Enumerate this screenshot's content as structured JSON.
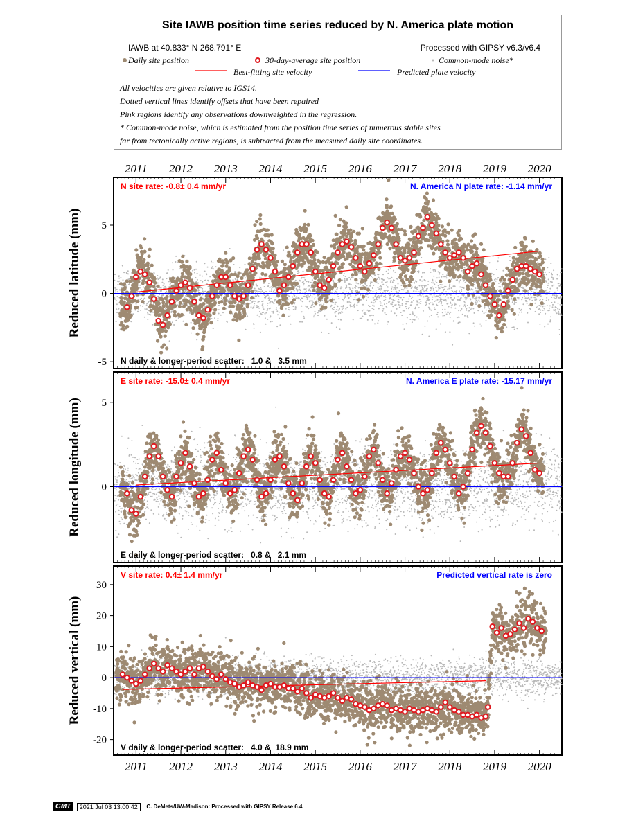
{
  "header": {
    "title": "Site IAWB position time series reduced by N. America plate motion",
    "site_location": "IAWB at 40.833° N 268.791° E",
    "processed_with": "Processed with GIPSY v6.3/v6.4",
    "legend": {
      "daily": "Daily site position",
      "avg30": "30-day-average site position",
      "cmn": "Common-mode noise*",
      "best_fit": "Best-fitting site velocity",
      "predicted": "Predicted plate velocity"
    },
    "notes": [
      "All velocities are given relative to IGS14.",
      "Dotted vertical lines identify offsets that have been repaired",
      "Pink regions identify any observations downweighted in the regression.",
      "* Common-mode noise, which is estimated from the position time series of numerous stable sites",
      "far from tectonically active regions, is subtracted from the measured daily site coordinates."
    ]
  },
  "colors": {
    "daily": "#9e8a72",
    "avg30_fill": "#ffffff",
    "avg30_edge": "#e0191f",
    "cmn": "#b8b8b8",
    "best_fit": "#ff0000",
    "predicted": "#0000ff",
    "site_rate_text": "#ff0000",
    "plate_rate_text": "#0000ff"
  },
  "chart_data": [
    {
      "type": "scatter",
      "component": "N",
      "ylabel": "Reduced latitude (mm)",
      "x_tick_labels": [
        "2011",
        "2012",
        "2013",
        "2014",
        "2015",
        "2016",
        "2017",
        "2018",
        "2019",
        "2020"
      ],
      "xlim": [
        2010.5,
        2020.5
      ],
      "ylim": [
        -5.5,
        8.5
      ],
      "yticks": [
        -5,
        0,
        5
      ],
      "site_rate_label": "N site rate:  -0.8± 0.4 mm/yr",
      "plate_rate_label": "N. America N plate rate: -1.14 mm/yr",
      "scatter_label": "N daily & longer-period scatter:   1.0 &   3.5 mm",
      "best_fit_line": {
        "x": [
          2011.0,
          2020.0
        ],
        "y": [
          0.1,
          3.1
        ]
      },
      "predicted_line": {
        "x": [
          2010.5,
          2020.5
        ],
        "y": [
          0,
          0
        ]
      },
      "avg30": {
        "x": [
          2010.8,
          2010.9,
          2011.0,
          2011.1,
          2011.2,
          2011.3,
          2011.4,
          2011.5,
          2011.6,
          2011.7,
          2011.8,
          2011.9,
          2012.0,
          2012.1,
          2012.2,
          2012.3,
          2012.4,
          2012.5,
          2012.6,
          2012.7,
          2012.8,
          2012.9,
          2013.0,
          2013.1,
          2013.2,
          2013.3,
          2013.4,
          2013.5,
          2013.6,
          2013.7,
          2013.8,
          2013.9,
          2014.0,
          2014.1,
          2014.2,
          2014.3,
          2014.4,
          2014.5,
          2014.6,
          2014.7,
          2014.8,
          2014.9,
          2015.0,
          2015.1,
          2015.2,
          2015.3,
          2015.4,
          2015.5,
          2015.6,
          2015.7,
          2015.8,
          2015.9,
          2016.0,
          2016.1,
          2016.2,
          2016.3,
          2016.4,
          2016.5,
          2016.6,
          2016.7,
          2016.8,
          2016.9,
          2017.0,
          2017.1,
          2017.2,
          2017.3,
          2017.4,
          2017.5,
          2017.6,
          2017.7,
          2017.8,
          2017.9,
          2018.0,
          2018.1,
          2018.2,
          2018.3,
          2018.4,
          2018.5,
          2018.6,
          2018.7,
          2018.8,
          2018.9,
          2019.0,
          2019.1,
          2019.2,
          2019.3,
          2019.4,
          2019.5,
          2019.6,
          2019.7,
          2019.8,
          2019.9,
          2020.0
        ],
        "y": [
          -1.0,
          -0.2,
          1.2,
          1.6,
          1.4,
          0.8,
          -0.4,
          -2.0,
          -2.3,
          -1.6,
          -0.6,
          0.2,
          0.6,
          0.8,
          0.4,
          -0.6,
          -1.6,
          -1.8,
          -1.2,
          -0.2,
          0.6,
          1.2,
          1.2,
          0.6,
          -0.2,
          -0.4,
          -0.2,
          0.6,
          1.8,
          3.2,
          3.6,
          3.2,
          2.6,
          1.6,
          0.2,
          0.6,
          1.2,
          2.0,
          3.0,
          3.6,
          3.6,
          3.0,
          1.6,
          0.6,
          0.4,
          1.0,
          2.0,
          3.0,
          3.6,
          3.8,
          3.4,
          2.6,
          2.0,
          1.6,
          2.2,
          2.8,
          3.6,
          4.8,
          5.2,
          4.8,
          3.6,
          2.6,
          2.4,
          2.6,
          3.0,
          4.2,
          4.8,
          5.6,
          5.0,
          4.4,
          3.6,
          3.0,
          2.6,
          2.8,
          3.0,
          2.6,
          1.6,
          2.0,
          2.2,
          1.4,
          0.6,
          -0.2,
          -0.8,
          -1.6,
          -0.8,
          0.2,
          1.0,
          1.8,
          2.0,
          2.0,
          1.8,
          1.6,
          1.4
        ]
      }
    },
    {
      "type": "scatter",
      "component": "E",
      "ylabel": "Reduced longitude (mm)",
      "x_tick_labels": [
        "2011",
        "2012",
        "2013",
        "2014",
        "2015",
        "2016",
        "2017",
        "2018",
        "2019",
        "2020"
      ],
      "xlim": [
        2010.5,
        2020.5
      ],
      "ylim": [
        -4.5,
        6.8
      ],
      "yticks": [
        0,
        5
      ],
      "site_rate_label": "E site rate:  -15.0± 0.4 mm/yr",
      "plate_rate_label": "N. America E plate rate: -15.17 mm/yr",
      "scatter_label": "E daily & longer-period scatter:   0.8 &   2.1 mm",
      "best_fit_line": {
        "x": [
          2011.0,
          2020.0
        ],
        "y": [
          0.1,
          1.4
        ]
      },
      "predicted_line": {
        "x": [
          2010.5,
          2020.5
        ],
        "y": [
          0,
          0
        ]
      },
      "avg30": {
        "x": [
          2010.8,
          2010.9,
          2011.0,
          2011.1,
          2011.2,
          2011.3,
          2011.4,
          2011.5,
          2011.6,
          2011.7,
          2011.8,
          2011.9,
          2012.0,
          2012.1,
          2012.2,
          2012.3,
          2012.4,
          2012.5,
          2012.6,
          2012.7,
          2012.8,
          2012.9,
          2013.0,
          2013.1,
          2013.2,
          2013.3,
          2013.4,
          2013.5,
          2013.6,
          2013.7,
          2013.8,
          2013.9,
          2014.0,
          2014.1,
          2014.2,
          2014.3,
          2014.4,
          2014.5,
          2014.6,
          2014.7,
          2014.8,
          2014.9,
          2015.0,
          2015.1,
          2015.2,
          2015.3,
          2015.4,
          2015.5,
          2015.6,
          2015.7,
          2015.8,
          2015.9,
          2016.0,
          2016.1,
          2016.2,
          2016.3,
          2016.4,
          2016.5,
          2016.6,
          2016.7,
          2016.8,
          2016.9,
          2017.0,
          2017.1,
          2017.2,
          2017.3,
          2017.4,
          2017.5,
          2017.6,
          2017.7,
          2017.8,
          2017.9,
          2018.0,
          2018.1,
          2018.2,
          2018.3,
          2018.4,
          2018.5,
          2018.6,
          2018.7,
          2018.8,
          2018.9,
          2019.0,
          2019.1,
          2019.2,
          2019.3,
          2019.4,
          2019.5,
          2019.6,
          2019.7,
          2019.8,
          2019.9,
          2020.0
        ],
        "y": [
          -0.4,
          -1.4,
          -1.6,
          -0.6,
          0.6,
          1.8,
          2.4,
          1.8,
          0.6,
          -0.2,
          -0.6,
          0.6,
          1.4,
          2.0,
          1.2,
          0.2,
          -0.6,
          -0.4,
          0.4,
          1.6,
          2.0,
          1.0,
          0.2,
          -0.4,
          -0.2,
          0.8,
          1.8,
          2.2,
          1.6,
          0.4,
          -0.6,
          -0.4,
          0.4,
          1.6,
          1.8,
          1.2,
          0.2,
          -0.4,
          -0.8,
          0.2,
          1.2,
          1.8,
          1.4,
          0.4,
          -0.4,
          -0.6,
          0.4,
          1.6,
          2.0,
          1.2,
          0.4,
          -0.4,
          -0.2,
          0.6,
          1.8,
          2.2,
          1.4,
          0.4,
          -0.4,
          0.2,
          1.0,
          1.8,
          2.0,
          1.6,
          0.8,
          0.0,
          -0.4,
          -0.2,
          0.8,
          2.0,
          2.6,
          2.2,
          1.4,
          0.6,
          -0.4,
          0.0,
          0.8,
          2.2,
          3.2,
          3.6,
          3.2,
          2.4,
          1.4,
          0.8,
          0.6,
          0.6,
          1.4,
          2.6,
          3.4,
          3.0,
          2.0,
          1.0,
          0.8
        ]
      }
    },
    {
      "type": "scatter",
      "component": "V",
      "ylabel": "Reduced vertical (mm)",
      "x_tick_labels": [
        "2011",
        "2012",
        "2013",
        "2014",
        "2015",
        "2016",
        "2017",
        "2018",
        "2019",
        "2020"
      ],
      "xlim": [
        2010.5,
        2020.5
      ],
      "ylim": [
        -25,
        36
      ],
      "yticks": [
        -20,
        -10,
        0,
        10,
        20,
        30
      ],
      "site_rate_label": "V site rate:   0.4± 1.4 mm/yr",
      "plate_rate_label": "Predicted vertical rate is zero",
      "scatter_label": "V daily & longer-period scatter:   4.0 &  18.9 mm",
      "best_fit_line": {
        "x": [
          2010.7,
          2018.8
        ],
        "y": [
          -3.8,
          -1.0
        ]
      },
      "predicted_line": {
        "x": [
          2010.5,
          2020.5
        ],
        "y": [
          0,
          0
        ]
      },
      "avg30": {
        "x": [
          2010.7,
          2010.8,
          2010.9,
          2011.0,
          2011.1,
          2011.2,
          2011.3,
          2011.4,
          2011.5,
          2011.6,
          2011.7,
          2011.8,
          2011.9,
          2012.0,
          2012.1,
          2012.2,
          2012.3,
          2012.4,
          2012.5,
          2012.6,
          2012.7,
          2012.8,
          2012.9,
          2013.0,
          2013.1,
          2013.2,
          2013.3,
          2013.4,
          2013.5,
          2013.6,
          2013.7,
          2013.8,
          2013.9,
          2014.0,
          2014.1,
          2014.2,
          2014.3,
          2014.4,
          2014.5,
          2014.6,
          2014.7,
          2014.8,
          2014.9,
          2015.0,
          2015.1,
          2015.2,
          2015.3,
          2015.4,
          2015.5,
          2015.6,
          2015.7,
          2015.8,
          2015.9,
          2016.0,
          2016.1,
          2016.2,
          2016.3,
          2016.4,
          2016.5,
          2016.6,
          2016.7,
          2016.8,
          2016.9,
          2017.0,
          2017.1,
          2017.2,
          2017.3,
          2017.4,
          2017.5,
          2017.6,
          2017.7,
          2017.8,
          2017.9,
          2018.0,
          2018.1,
          2018.2,
          2018.3,
          2018.4,
          2018.5,
          2018.6,
          2018.7,
          2018.8,
          2018.85,
          2018.95,
          2019.05,
          2019.15,
          2019.25,
          2019.35,
          2019.45,
          2019.55,
          2019.65,
          2019.75,
          2019.85,
          2019.95,
          2020.05
        ],
        "y": [
          1.0,
          0.0,
          -1.0,
          -2.0,
          -1.0,
          1.0,
          3.0,
          4.5,
          3.0,
          2.0,
          4.0,
          3.0,
          2.0,
          1.0,
          2.0,
          3.0,
          1.0,
          3.0,
          3.5,
          2.0,
          0.5,
          -0.5,
          1.0,
          -0.5,
          -1.5,
          -2.0,
          -3.0,
          -2.5,
          -1.5,
          -2.5,
          -3.0,
          -4.0,
          -2.5,
          -2.0,
          -3.0,
          -3.0,
          -2.5,
          -3.5,
          -3.5,
          -4.5,
          -3.5,
          -5.0,
          -6.5,
          -5.5,
          -6.0,
          -6.5,
          -6.0,
          -5.0,
          -6.5,
          -7.5,
          -6.5,
          -7.0,
          -8.5,
          -9.0,
          -9.5,
          -10.5,
          -10.0,
          -9.0,
          -8.5,
          -9.0,
          -10.5,
          -10.0,
          -10.5,
          -11.0,
          -10.0,
          -10.5,
          -11.0,
          -10.5,
          -10.0,
          -10.5,
          -11.0,
          -9.5,
          -8.0,
          -9.5,
          -10.5,
          -11.0,
          -12.0,
          -12.0,
          -12.5,
          -12.0,
          -13.0,
          -12.5,
          -9.5,
          16.5,
          14.5,
          16.0,
          13.5,
          14.0,
          15.5,
          17.5,
          16.0,
          19.0,
          18.0,
          16.0,
          15.0
        ]
      }
    }
  ],
  "footer": {
    "logo": "GMT",
    "timestamp": "2021 Jul 03 13:00:42",
    "credit": "C. DeMets/UW-Madison: Processed with GIPSY Release 6.4"
  }
}
